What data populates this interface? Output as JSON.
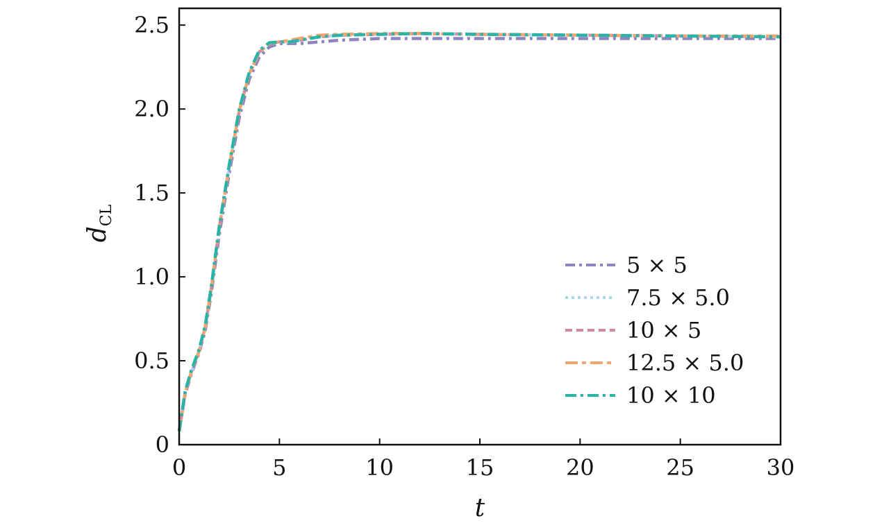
{
  "chart_data": {
    "type": "line",
    "title": "",
    "xlabel": "t",
    "ylabel": "d",
    "ylabel_sub": "CL",
    "xlim": [
      0,
      30
    ],
    "ylim": [
      0,
      2.6
    ],
    "x_ticks": [
      0,
      5,
      10,
      15,
      20,
      25,
      30
    ],
    "x_tick_labels": [
      "0",
      "5",
      "10",
      "15",
      "20",
      "25",
      "30"
    ],
    "y_ticks": [
      0,
      0.5,
      1.0,
      1.5,
      2.0,
      2.5
    ],
    "y_tick_labels": [
      "0",
      "0.5",
      "1.0",
      "1.5",
      "2.0",
      "2.5"
    ],
    "grid": false,
    "legend_position": "lower-right",
    "series": [
      {
        "name": "5 × 5",
        "color": "#8c85c2",
        "dash": "14,6,4,6",
        "x": [
          0,
          0.3,
          0.6,
          1.0,
          1.3,
          1.6,
          2.0,
          2.5,
          3.0,
          3.5,
          4.0,
          4.5,
          5.0,
          5.5,
          6.0,
          7.0,
          8.0,
          10.0,
          12.0,
          15.0,
          20.0,
          25.0,
          30.0
        ],
        "y": [
          0.08,
          0.3,
          0.42,
          0.55,
          0.68,
          0.9,
          1.25,
          1.62,
          1.95,
          2.18,
          2.31,
          2.37,
          2.39,
          2.39,
          2.39,
          2.4,
          2.41,
          2.42,
          2.42,
          2.42,
          2.42,
          2.42,
          2.42
        ]
      },
      {
        "name": "7.5 × 5.0",
        "color": "#a9d8ee",
        "dash": "4,5",
        "x": [
          0,
          0.3,
          0.6,
          1.0,
          1.3,
          1.6,
          2.0,
          2.5,
          3.0,
          3.5,
          4.0,
          4.5,
          5.0,
          5.5,
          6.0,
          7.0,
          8.0,
          10.0,
          12.0,
          15.0,
          20.0,
          25.0,
          30.0
        ],
        "y": [
          0.08,
          0.31,
          0.43,
          0.56,
          0.7,
          0.93,
          1.29,
          1.66,
          1.99,
          2.21,
          2.34,
          2.39,
          2.4,
          2.4,
          2.41,
          2.43,
          2.44,
          2.445,
          2.45,
          2.445,
          2.44,
          2.435,
          2.43
        ]
      },
      {
        "name": "10 × 5",
        "color": "#d489a3",
        "dash": "10,6",
        "x": [
          0,
          0.3,
          0.6,
          1.0,
          1.3,
          1.6,
          2.0,
          2.5,
          3.0,
          3.5,
          4.0,
          4.5,
          5.0,
          5.5,
          6.0,
          7.0,
          8.0,
          10.0,
          12.0,
          15.0,
          20.0,
          25.0,
          30.0
        ],
        "y": [
          0.08,
          0.31,
          0.43,
          0.56,
          0.7,
          0.93,
          1.29,
          1.66,
          1.99,
          2.21,
          2.34,
          2.39,
          2.4,
          2.4,
          2.41,
          2.43,
          2.44,
          2.445,
          2.45,
          2.445,
          2.44,
          2.435,
          2.43
        ]
      },
      {
        "name": "12.5 × 5.0",
        "color": "#f4a56e",
        "dash": "18,6,6,6",
        "x": [
          0,
          0.3,
          0.6,
          1.0,
          1.3,
          1.6,
          2.0,
          2.5,
          3.0,
          3.5,
          4.0,
          4.5,
          5.0,
          5.5,
          6.0,
          7.0,
          8.0,
          10.0,
          12.0,
          15.0,
          20.0,
          25.0,
          30.0
        ],
        "y": [
          0.08,
          0.31,
          0.43,
          0.56,
          0.7,
          0.93,
          1.29,
          1.66,
          1.99,
          2.21,
          2.34,
          2.39,
          2.4,
          2.41,
          2.42,
          2.44,
          2.445,
          2.45,
          2.45,
          2.445,
          2.44,
          2.435,
          2.435
        ]
      },
      {
        "name": "10 × 10",
        "color": "#2bb3a8",
        "dash": "16,6,4,6",
        "x": [
          0,
          0.3,
          0.6,
          1.0,
          1.3,
          1.6,
          2.0,
          2.5,
          3.0,
          3.5,
          4.0,
          4.5,
          5.0,
          5.5,
          6.0,
          7.0,
          8.0,
          10.0,
          12.0,
          15.0,
          20.0,
          25.0,
          30.0
        ],
        "y": [
          0.08,
          0.32,
          0.44,
          0.57,
          0.71,
          0.94,
          1.3,
          1.67,
          2.0,
          2.22,
          2.35,
          2.395,
          2.4,
          2.4,
          2.41,
          2.43,
          2.44,
          2.445,
          2.45,
          2.445,
          2.44,
          2.435,
          2.43
        ]
      }
    ]
  }
}
